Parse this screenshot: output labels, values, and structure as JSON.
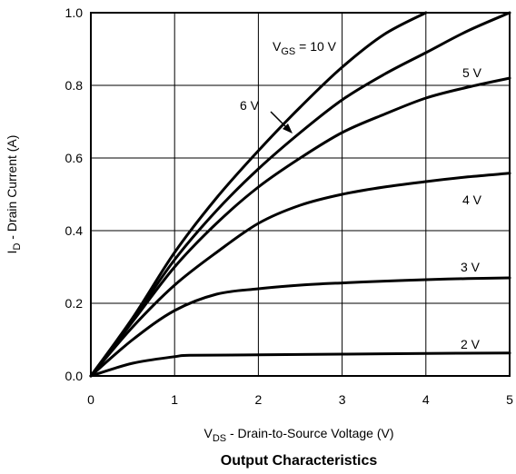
{
  "chart_data": {
    "type": "line",
    "title": "Output Characteristics",
    "xlabel": {
      "main": "V",
      "sub": "DS",
      "rest": " - Drain-to-Source Voltage (V)"
    },
    "ylabel": {
      "main": "I",
      "sub": "D",
      "rest": " - Drain Current (A)"
    },
    "xlim": [
      0,
      5
    ],
    "ylim": [
      0,
      1.0
    ],
    "grid": true,
    "x_ticks": [
      "0",
      "1",
      "2",
      "3",
      "4",
      "5"
    ],
    "y_ticks": [
      "0.0",
      "0.2",
      "0.4",
      "0.6",
      "0.8",
      "1.0"
    ],
    "series": [
      {
        "name": "V_GS = 10 V",
        "label": {
          "main": "V",
          "sub": "GS",
          "rest": " = 10 V"
        },
        "x": [
          0,
          0.5,
          1.0,
          1.5,
          2.0,
          2.5,
          3.0,
          3.5,
          4.0
        ],
        "y": [
          0,
          0.16,
          0.34,
          0.49,
          0.62,
          0.74,
          0.85,
          0.94,
          1.0
        ]
      },
      {
        "name": "6 V",
        "label": {
          "main": "6 V",
          "sub": "",
          "rest": ""
        },
        "x": [
          0,
          0.5,
          1.0,
          1.5,
          2.0,
          2.5,
          3.0,
          3.5,
          4.0,
          4.5,
          5.0
        ],
        "y": [
          0,
          0.155,
          0.32,
          0.455,
          0.57,
          0.67,
          0.76,
          0.83,
          0.89,
          0.95,
          1.0
        ]
      },
      {
        "name": "5 V",
        "label": {
          "main": "5 V",
          "sub": "",
          "rest": ""
        },
        "x": [
          0,
          0.5,
          1.0,
          1.5,
          2.0,
          2.5,
          3.0,
          3.5,
          4.0,
          4.5,
          5.0
        ],
        "y": [
          0,
          0.15,
          0.3,
          0.42,
          0.52,
          0.6,
          0.67,
          0.72,
          0.765,
          0.795,
          0.82
        ]
      },
      {
        "name": "4 V",
        "label": {
          "main": "4 V",
          "sub": "",
          "rest": ""
        },
        "x": [
          0,
          0.5,
          1.0,
          1.5,
          2.0,
          2.5,
          3.0,
          3.5,
          4.0,
          4.5,
          5.0
        ],
        "y": [
          0,
          0.135,
          0.25,
          0.34,
          0.42,
          0.47,
          0.5,
          0.52,
          0.535,
          0.548,
          0.558
        ]
      },
      {
        "name": "3 V",
        "label": {
          "main": "3 V",
          "sub": "",
          "rest": ""
        },
        "x": [
          0,
          0.5,
          1.0,
          1.5,
          2.0,
          2.5,
          3.0,
          3.5,
          4.0,
          4.5,
          5.0
        ],
        "y": [
          0,
          0.1,
          0.18,
          0.225,
          0.24,
          0.25,
          0.256,
          0.261,
          0.265,
          0.268,
          0.27
        ]
      },
      {
        "name": "2 V",
        "label": {
          "main": "2 V",
          "sub": "",
          "rest": ""
        },
        "x": [
          0,
          0.5,
          1.0,
          1.2,
          2.0,
          3.0,
          4.0,
          5.0
        ],
        "y": [
          0,
          0.035,
          0.053,
          0.057,
          0.058,
          0.06,
          0.062,
          0.063
        ]
      }
    ],
    "colors": {
      "line": "#000000",
      "grid": "#000000",
      "background": "#ffffff"
    }
  }
}
